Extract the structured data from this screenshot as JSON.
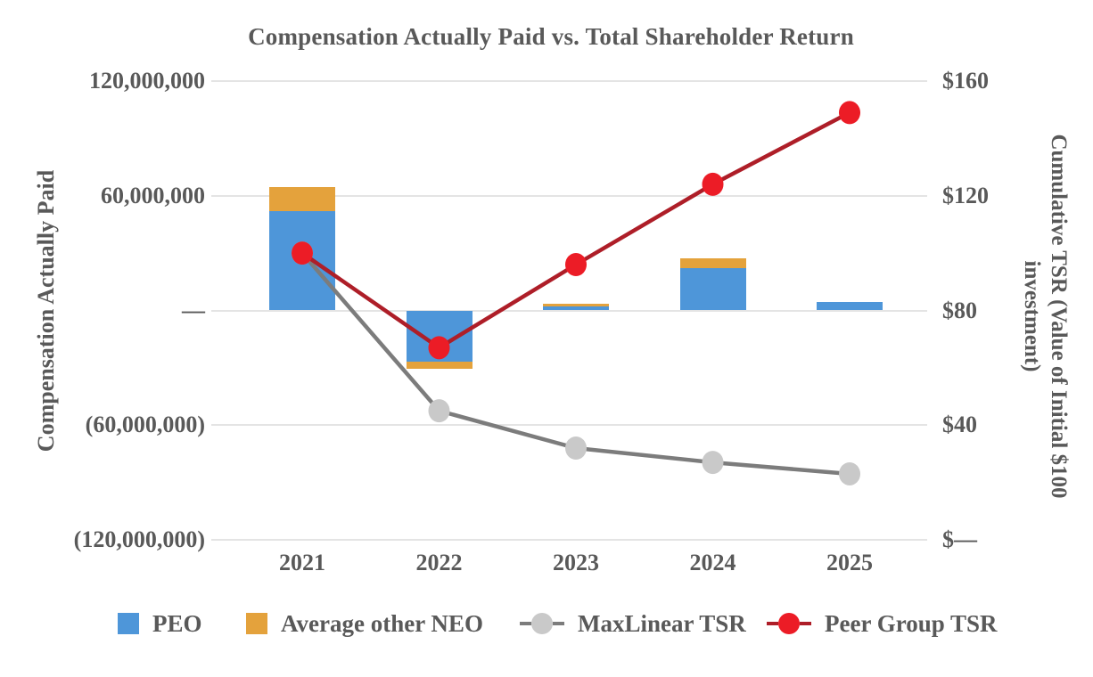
{
  "title": "Compensation Actually Paid vs. Total Shareholder Return",
  "left_axis": {
    "title": "Compensation Actually Paid",
    "ticks": [
      "120,000,000",
      "60,000,000",
      "—",
      "(60,000,000)",
      "(120,000,000)"
    ]
  },
  "right_axis": {
    "title_line1": "Cumulative TSR (Value of Initial $100",
    "title_line2": "investment)",
    "ticks": [
      "$160",
      "$120",
      "$80",
      "$40",
      "$—"
    ]
  },
  "x_axis": {
    "labels": [
      "2021",
      "2022",
      "2023",
      "2024",
      "2025"
    ]
  },
  "legend": {
    "items": [
      {
        "label": "PEO",
        "glyph": "bar-swatch",
        "color": "#4E96D9"
      },
      {
        "label": "Average other NEO",
        "glyph": "bar-swatch",
        "color": "#E4A23C"
      },
      {
        "label": "MaxLinear TSR",
        "glyph": "line-marker",
        "line_color": "#7C7C7C",
        "marker_color": "#C9C9C9"
      },
      {
        "label": "Peer Group TSR",
        "glyph": "line-marker",
        "line_color": "#AE1E28",
        "marker_color": "#EC1C26"
      }
    ]
  },
  "colors": {
    "text": "#595959",
    "gridline": "#E4E4E4",
    "peo_blue": "#4E96D9",
    "neo_gold": "#E4A23C",
    "maxlinear_line": "#7C7C7C",
    "maxlinear_marker": "#C9C9C9",
    "peer_line": "#AE1E28",
    "peer_marker": "#EC1C26"
  },
  "chart_data": {
    "type": "bar",
    "subtype": "stacked-bars-with-lines-combo",
    "title": "Compensation Actually Paid vs. Total Shareholder Return",
    "categories": [
      "2021",
      "2022",
      "2023",
      "2024",
      "2025"
    ],
    "bar_series": [
      {
        "name": "PEO",
        "color": "#4E96D9",
        "axis": "left",
        "values": [
          52000000,
          -27000000,
          2300000,
          22000000,
          4600000
        ]
      },
      {
        "name": "Average other NEO",
        "color": "#E4A23C",
        "axis": "left",
        "values": [
          12600000,
          -3700000,
          1200000,
          5200000,
          0
        ]
      }
    ],
    "line_series": [
      {
        "name": "MaxLinear TSR",
        "line_color": "#7C7C7C",
        "marker_color": "#C9C9C9",
        "axis": "right",
        "values": [
          100,
          45,
          32,
          27,
          23
        ]
      },
      {
        "name": "Peer Group TSR",
        "line_color": "#AE1E28",
        "marker_color": "#EC1C26",
        "axis": "right",
        "values": [
          100,
          67,
          96,
          124,
          149
        ]
      }
    ],
    "left_axis": {
      "label": "Compensation Actually Paid",
      "range": [
        -120000000,
        120000000
      ],
      "tick_step": 60000000
    },
    "right_axis": {
      "label": "Cumulative TSR (Value of Initial $100 investment)",
      "range": [
        0,
        160
      ],
      "tick_step": 40
    },
    "grid": true,
    "legend_position": "bottom"
  }
}
